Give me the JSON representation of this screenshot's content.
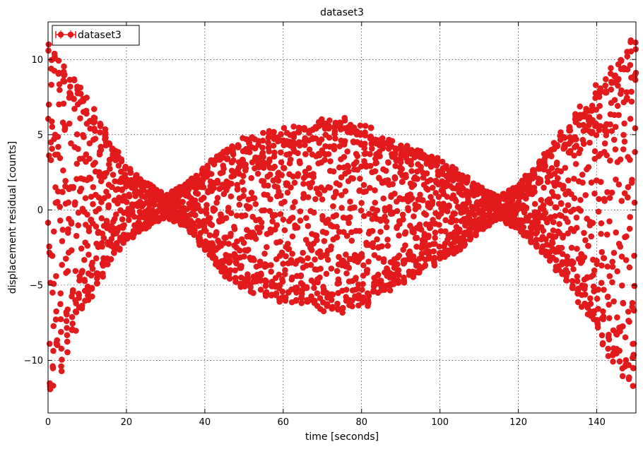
{
  "chart_data": {
    "type": "scatter",
    "title": "dataset3",
    "xlabel": "time [seconds]",
    "ylabel": "displacement residual [counts]",
    "xlim": [
      0,
      150
    ],
    "ylim": [
      -13.5,
      12.5
    ],
    "xticks": [
      0,
      20,
      40,
      60,
      80,
      100,
      120,
      140
    ],
    "yticks": [
      -10,
      -5,
      0,
      5,
      10
    ],
    "ytick_labels": [
      "−10",
      "−5",
      "0",
      "5",
      "10"
    ],
    "grid": true,
    "legend": {
      "position": "top-left",
      "entries": [
        "dataset3"
      ]
    },
    "series": [
      {
        "name": "dataset3",
        "color": "#e31a1c",
        "marker": "circle",
        "error_bars": true,
        "envelope": [
          {
            "x": 0,
            "lower": -13.2,
            "upper": 11.5
          },
          {
            "x": 5,
            "lower": -9.8,
            "upper": 10.2
          },
          {
            "x": 10,
            "lower": -6.5,
            "upper": 7.8
          },
          {
            "x": 15,
            "lower": -4.0,
            "upper": 5.2
          },
          {
            "x": 20,
            "lower": -2.2,
            "upper": 3.0
          },
          {
            "x": 25,
            "lower": -1.3,
            "upper": 1.9
          },
          {
            "x": 30,
            "lower": -0.5,
            "upper": 1.0
          },
          {
            "x": 35,
            "lower": -1.2,
            "upper": 1.8
          },
          {
            "x": 40,
            "lower": -2.8,
            "upper": 3.0
          },
          {
            "x": 45,
            "lower": -4.6,
            "upper": 4.2
          },
          {
            "x": 50,
            "lower": -5.5,
            "upper": 5.0
          },
          {
            "x": 55,
            "lower": -5.8,
            "upper": 5.3
          },
          {
            "x": 60,
            "lower": -6.2,
            "upper": 5.5
          },
          {
            "x": 65,
            "lower": -6.5,
            "upper": 5.9
          },
          {
            "x": 70,
            "lower": -6.8,
            "upper": 6.1
          },
          {
            "x": 75,
            "lower": -7.0,
            "upper": 6.3
          },
          {
            "x": 80,
            "lower": -6.6,
            "upper": 6.0
          },
          {
            "x": 85,
            "lower": -6.0,
            "upper": 5.0
          },
          {
            "x": 90,
            "lower": -5.0,
            "upper": 4.5
          },
          {
            "x": 95,
            "lower": -4.2,
            "upper": 4.0
          },
          {
            "x": 100,
            "lower": -3.5,
            "upper": 3.4
          },
          {
            "x": 105,
            "lower": -2.8,
            "upper": 2.6
          },
          {
            "x": 110,
            "lower": -1.5,
            "upper": 1.6
          },
          {
            "x": 115,
            "lower": -0.6,
            "upper": 0.9
          },
          {
            "x": 120,
            "lower": -1.4,
            "upper": 1.8
          },
          {
            "x": 125,
            "lower": -2.7,
            "upper": 3.3
          },
          {
            "x": 130,
            "lower": -4.2,
            "upper": 5.0
          },
          {
            "x": 135,
            "lower": -6.2,
            "upper": 6.8
          },
          {
            "x": 140,
            "lower": -8.5,
            "upper": 8.6
          },
          {
            "x": 145,
            "lower": -10.8,
            "upper": 10.0
          },
          {
            "x": 150,
            "lower": -12.8,
            "upper": 12.0
          }
        ]
      }
    ]
  }
}
